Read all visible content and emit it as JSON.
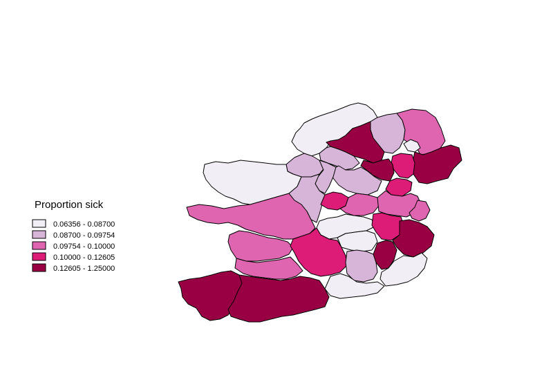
{
  "legend": {
    "title": "Proportion sick",
    "classes": [
      {
        "label": "0.06356 - 0.08700",
        "color": "#f1eef6"
      },
      {
        "label": "0.08700 - 0.09754",
        "color": "#d7b5d8"
      },
      {
        "label": "0.09754 - 0.10000",
        "color": "#df65b0"
      },
      {
        "label": "0.10000 - 0.12605",
        "color": "#dd1c77"
      },
      {
        "label": "0.12605 - 1.25000",
        "color": "#980043"
      }
    ]
  },
  "map": {
    "regions": [
      {
        "id": "donegal",
        "class": 0
      },
      {
        "id": "mayo",
        "class": 0
      },
      {
        "id": "sligo",
        "class": 1
      },
      {
        "id": "leitrim",
        "class": 1
      },
      {
        "id": "roscommon",
        "class": 1
      },
      {
        "id": "galway",
        "class": 2
      },
      {
        "id": "clare",
        "class": 2
      },
      {
        "id": "limerick",
        "class": 2
      },
      {
        "id": "tipperary",
        "class": 3
      },
      {
        "id": "cork",
        "class": 4
      },
      {
        "id": "kerry",
        "class": 4
      },
      {
        "id": "waterford",
        "class": 0
      },
      {
        "id": "kilkenny",
        "class": 1
      },
      {
        "id": "wexford",
        "class": 0
      },
      {
        "id": "wicklow",
        "class": 4
      },
      {
        "id": "carlow",
        "class": 4
      },
      {
        "id": "laois",
        "class": 0
      },
      {
        "id": "offaly",
        "class": 0
      },
      {
        "id": "kildare",
        "class": 3
      },
      {
        "id": "dublin",
        "class": 2
      },
      {
        "id": "meath",
        "class": 2
      },
      {
        "id": "westmeath",
        "class": 2
      },
      {
        "id": "longford",
        "class": 3
      },
      {
        "id": "cavan",
        "class": 1
      },
      {
        "id": "monaghan",
        "class": 4
      },
      {
        "id": "louth",
        "class": 3
      },
      {
        "id": "fermanagh",
        "class": 1
      },
      {
        "id": "tyrone",
        "class": 4
      },
      {
        "id": "derry",
        "class": 1
      },
      {
        "id": "antrim",
        "class": 2
      },
      {
        "id": "armagh",
        "class": 3
      },
      {
        "id": "down",
        "class": 4
      },
      {
        "id": "belfast",
        "class": 0
      }
    ]
  }
}
